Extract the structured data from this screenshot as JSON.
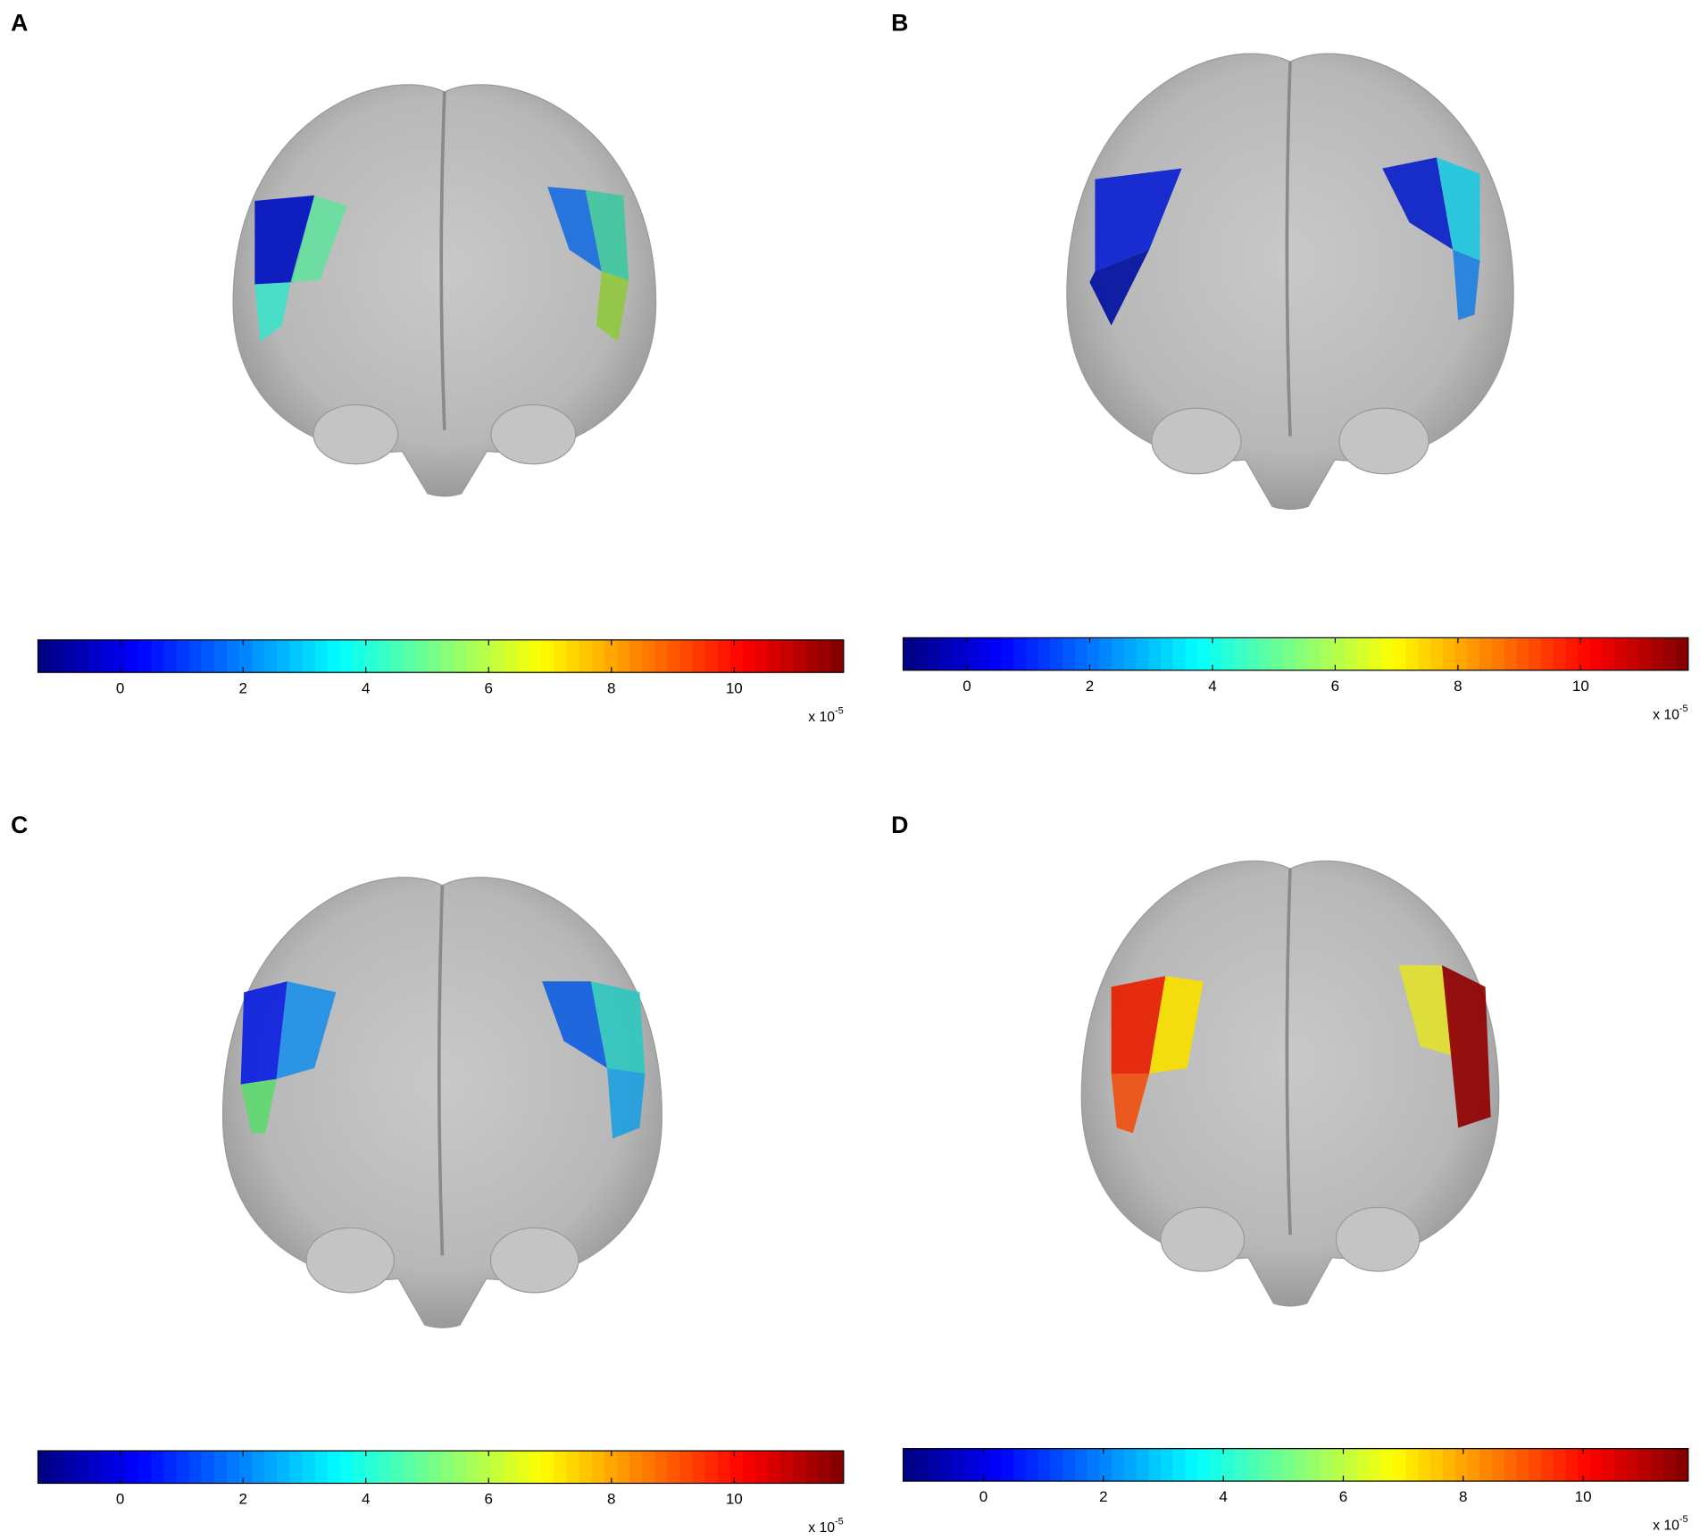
{
  "panels": [
    {
      "label": "A",
      "colorbar": {
        "lim": [
          -1.34,
          11.78
        ],
        "ticks": [
          0,
          2,
          4,
          6,
          8,
          10
        ],
        "multiplier": "x 10",
        "exponent": "-5"
      }
    },
    {
      "label": "B",
      "colorbar": {
        "lim": [
          -1.04,
          11.75
        ],
        "ticks": [
          0,
          2,
          4,
          6,
          8,
          10
        ],
        "multiplier": "x 10",
        "exponent": "-5"
      }
    },
    {
      "label": "C",
      "colorbar": {
        "lim": [
          -1.34,
          11.78
        ],
        "ticks": [
          0,
          2,
          4,
          6,
          8,
          10
        ],
        "multiplier": "x 10",
        "exponent": "-5"
      }
    },
    {
      "label": "D",
      "colorbar": {
        "lim": [
          -1.34,
          11.75
        ],
        "ticks": [
          0,
          2,
          4,
          6,
          8,
          10
        ],
        "multiplier": "x 10",
        "exponent": "-5"
      }
    }
  ]
}
